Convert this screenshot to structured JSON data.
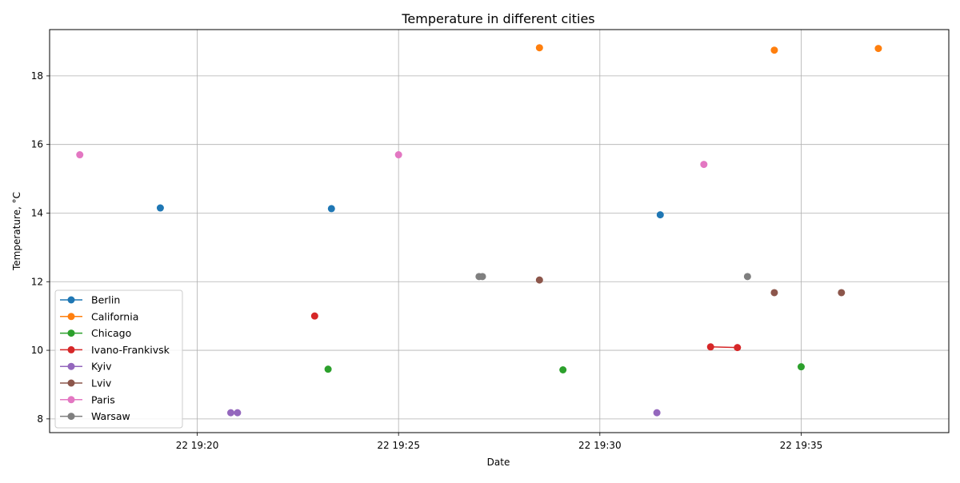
{
  "chart_data": {
    "type": "line",
    "title": "Temperature in different cities",
    "xlabel": "Date",
    "ylabel": "Temperature, °C",
    "x_ticks": [
      "22 19:20",
      "22 19:25",
      "22 19:30",
      "22 19:35"
    ],
    "y_ticks": [
      8,
      10,
      12,
      14,
      16,
      18
    ],
    "xlim": [
      "19:16:20",
      "19:38:40"
    ],
    "ylim": [
      7.6,
      19.35
    ],
    "grid": true,
    "legend_position": "lower-left",
    "marker": "circle",
    "series": [
      {
        "name": "Berlin",
        "color": "#1f77b4",
        "points": [
          {
            "x": "19:19:05",
            "y": 14.15,
            "connected": false
          },
          {
            "x": "19:23:20",
            "y": 14.13,
            "connected": false
          },
          {
            "x": "19:31:30",
            "y": 13.95,
            "connected": false
          }
        ]
      },
      {
        "name": "California",
        "color": "#ff7f0e",
        "points": [
          {
            "x": "19:28:30",
            "y": 18.82,
            "connected": false
          },
          {
            "x": "19:34:20",
            "y": 18.75,
            "connected": false
          },
          {
            "x": "19:36:55",
            "y": 18.8,
            "connected": false
          }
        ]
      },
      {
        "name": "Chicago",
        "color": "#2ca02c",
        "points": [
          {
            "x": "19:23:15",
            "y": 9.45,
            "connected": false
          },
          {
            "x": "19:29:05",
            "y": 9.43,
            "connected": false
          },
          {
            "x": "19:35:00",
            "y": 9.52,
            "connected": false
          }
        ]
      },
      {
        "name": "Ivano-Frankivsk",
        "color": "#d62728",
        "points": [
          {
            "x": "19:22:55",
            "y": 11.0,
            "connected": false
          },
          {
            "x": "19:32:45",
            "y": 10.1,
            "connected": true
          },
          {
            "x": "19:33:25",
            "y": 10.08,
            "connected": true
          }
        ]
      },
      {
        "name": "Kyiv",
        "color": "#9467bd",
        "points": [
          {
            "x": "19:20:50",
            "y": 8.18,
            "connected": false
          },
          {
            "x": "19:21:00",
            "y": 8.18,
            "connected": false
          },
          {
            "x": "19:31:25",
            "y": 8.18,
            "connected": false
          }
        ]
      },
      {
        "name": "Lviv",
        "color": "#8c564b",
        "points": [
          {
            "x": "19:28:30",
            "y": 12.05,
            "connected": false
          },
          {
            "x": "19:34:20",
            "y": 11.68,
            "connected": false
          },
          {
            "x": "19:36:00",
            "y": 11.68,
            "connected": false
          }
        ]
      },
      {
        "name": "Paris",
        "color": "#e377c2",
        "points": [
          {
            "x": "19:17:05",
            "y": 15.7,
            "connected": false
          },
          {
            "x": "19:25:00",
            "y": 15.7,
            "connected": false
          },
          {
            "x": "19:32:35",
            "y": 15.42,
            "connected": false
          }
        ]
      },
      {
        "name": "Warsaw",
        "color": "#7f7f7f",
        "points": [
          {
            "x": "19:27:00",
            "y": 12.15,
            "connected": false
          },
          {
            "x": "19:27:05",
            "y": 12.15,
            "connected": false
          },
          {
            "x": "19:33:40",
            "y": 12.15,
            "connected": false
          }
        ]
      }
    ]
  }
}
